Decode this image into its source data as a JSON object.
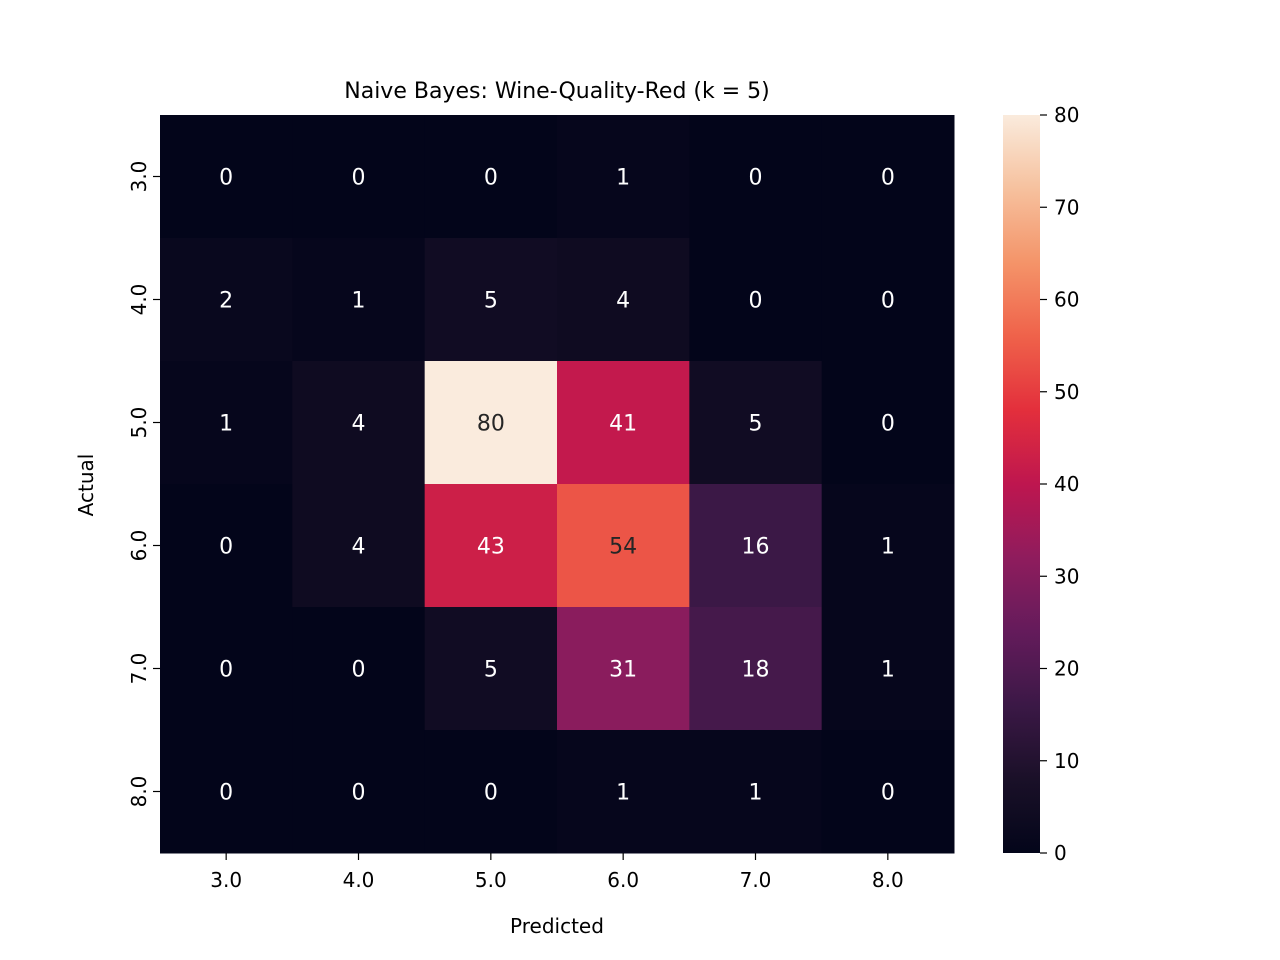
{
  "chart_data": {
    "type": "heatmap",
    "title": "Naive Bayes: Wine-Quality-Red (k = 5)",
    "xlabel": "Predicted",
    "ylabel": "Actual",
    "x_categories": [
      "3.0",
      "4.0",
      "5.0",
      "6.0",
      "7.0",
      "8.0"
    ],
    "y_categories": [
      "3.0",
      "4.0",
      "5.0",
      "6.0",
      "7.0",
      "8.0"
    ],
    "values": [
      [
        0,
        0,
        0,
        1,
        0,
        0
      ],
      [
        2,
        1,
        5,
        4,
        0,
        0
      ],
      [
        1,
        4,
        80,
        41,
        5,
        0
      ],
      [
        0,
        4,
        43,
        54,
        16,
        1
      ],
      [
        0,
        0,
        5,
        31,
        18,
        1
      ],
      [
        0,
        0,
        0,
        1,
        1,
        0
      ]
    ],
    "colorbar": {
      "min": 0,
      "max": 80,
      "ticks": [
        "0",
        "10",
        "20",
        "30",
        "40",
        "50",
        "60",
        "70",
        "80"
      ],
      "colormap": "rocket"
    }
  }
}
